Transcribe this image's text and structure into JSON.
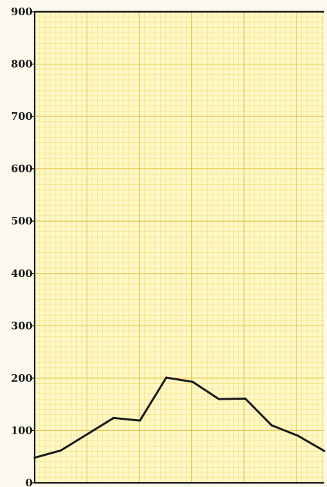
{
  "chart_data": {
    "type": "line",
    "title": "",
    "xlabel": "",
    "ylabel": "",
    "ylim": [
      0,
      900
    ],
    "y_ticks": [
      "0",
      "100",
      "200",
      "300",
      "400",
      "500",
      "600",
      "700",
      "800",
      "900"
    ],
    "grid": true,
    "background": "graph paper",
    "x": [
      0,
      1,
      2,
      3,
      4,
      5,
      6,
      7,
      8,
      9,
      10,
      11
    ],
    "series": [
      {
        "values": [
          48,
          62,
          93,
          124,
          119,
          201,
          193,
          160,
          161,
          110,
          90,
          61
        ]
      }
    ]
  },
  "colors": {
    "paper": "#fdf8c6",
    "grid_minor": "#f4dc7a",
    "grid_major": "#e6c54e",
    "line": "#1a1a1a",
    "axis": "#1a1a1a"
  }
}
